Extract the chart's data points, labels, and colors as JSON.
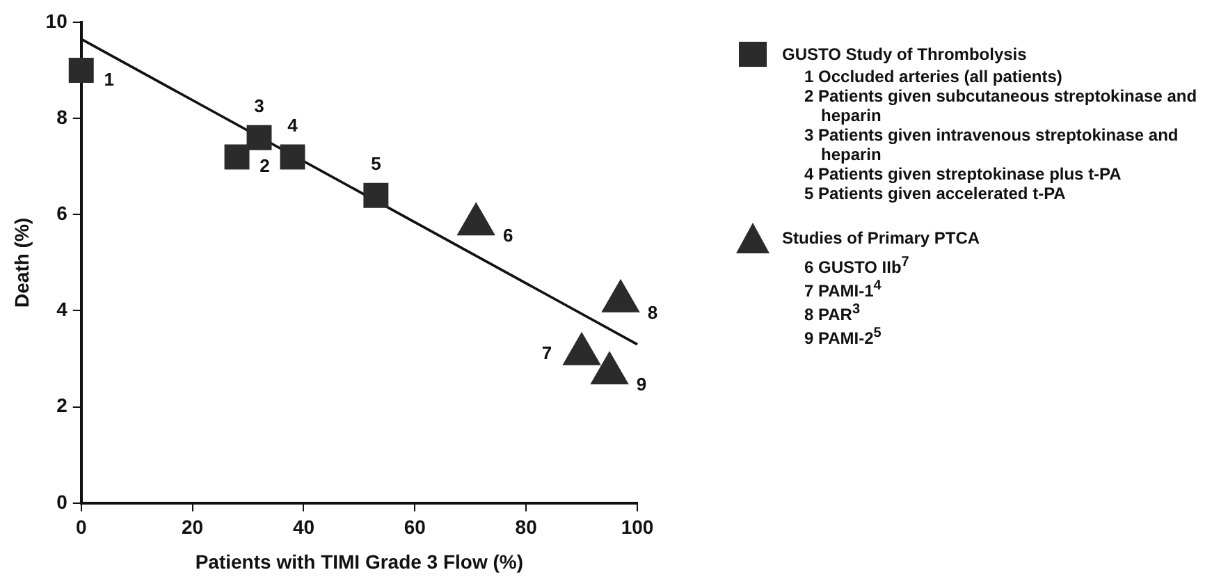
{
  "chart_data": {
    "type": "scatter",
    "xlabel": "Patients with TIMI Grade 3 Flow (%)",
    "ylabel": "Death (%)",
    "xlim": [
      0,
      100
    ],
    "xticks": [
      0,
      20,
      40,
      60,
      80,
      100
    ],
    "ylim": [
      0,
      10
    ],
    "yticks": [
      0,
      2,
      4,
      6,
      8,
      10
    ],
    "grid": false,
    "legend": "right",
    "series": [
      {
        "name": "GUSTO Study of Thrombolysis",
        "marker": "square",
        "color": "#2b2b2b",
        "x": [
          0,
          28,
          32,
          38,
          53
        ],
        "values": [
          9.0,
          7.2,
          7.6,
          7.2,
          6.4
        ]
      },
      {
        "name": "Studies of Primary PTCA",
        "marker": "triangle",
        "color": "#2b2b2b",
        "x": [
          71,
          90,
          97,
          95
        ],
        "values": [
          5.8,
          3.1,
          4.2,
          2.7
        ]
      },
      {
        "type": "line",
        "marker": "none",
        "color": "#111111",
        "x": [
          0,
          100
        ],
        "values": [
          9.65,
          3.3
        ]
      }
    ],
    "annotations": [
      {
        "text": "1",
        "x": 0,
        "y": 9.0
      },
      {
        "text": "2",
        "x": 28,
        "y": 7.2
      },
      {
        "text": "3",
        "x": 32,
        "y": 7.6
      },
      {
        "text": "4",
        "x": 38,
        "y": 7.2
      },
      {
        "text": "5",
        "x": 53,
        "y": 6.4
      },
      {
        "text": "6",
        "x": 71,
        "y": 5.8
      },
      {
        "text": "7",
        "x": 90,
        "y": 3.1
      },
      {
        "text": "8",
        "x": 97,
        "y": 4.2
      },
      {
        "text": "9",
        "x": 95,
        "y": 2.7
      },
      "1 Occluded arteries (all patients)",
      "2 Patients given subcutaneous streptokinase and heparin",
      "3 Patients given intravenous streptokinase and heparin",
      "4 Patients given streptokinase plus t-PA",
      "5 Patients given accelerated t-PA",
      "6 GUSTO IIb$^{7}$",
      "7 PAMI-1$^{4}$",
      "8 PAR$^{3}$",
      "9 PAMI-2$^{5}$"
    ]
  }
}
